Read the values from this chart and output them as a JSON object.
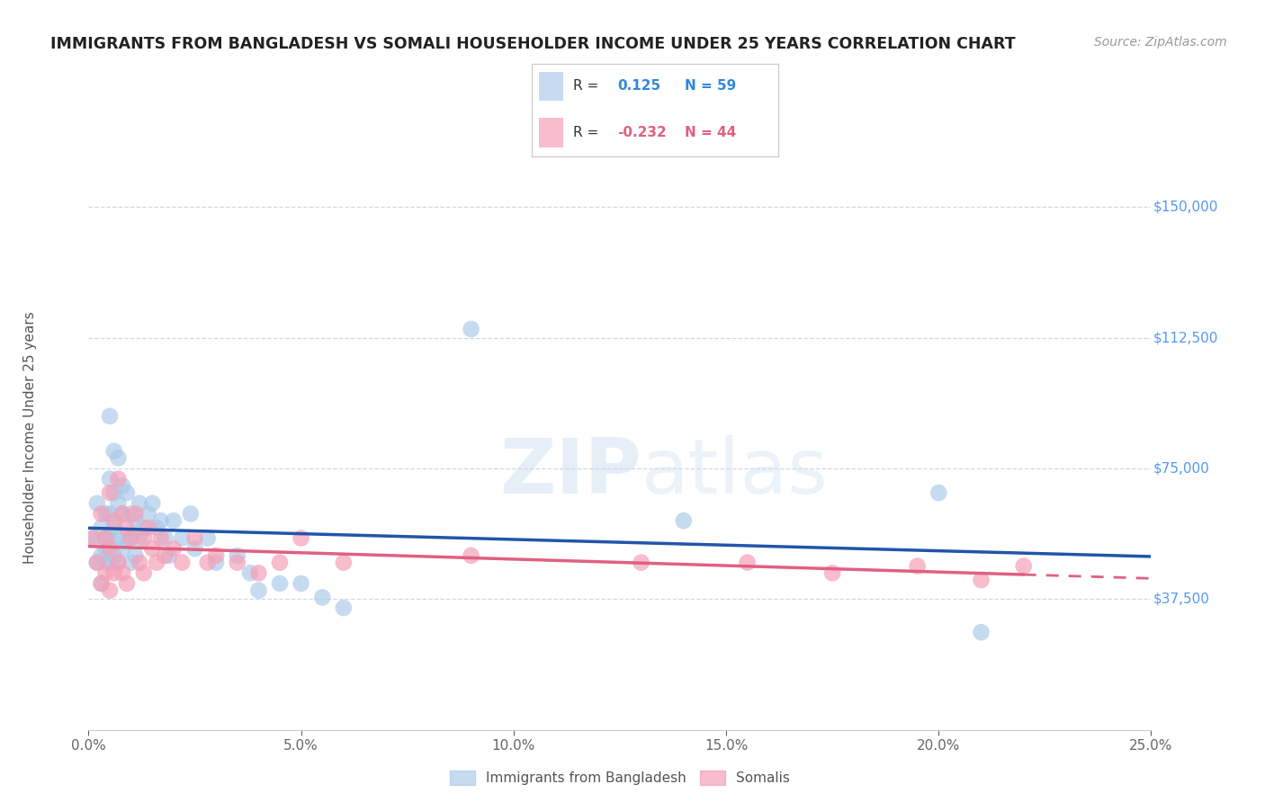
{
  "title": "IMMIGRANTS FROM BANGLADESH VS SOMALI HOUSEHOLDER INCOME UNDER 25 YEARS CORRELATION CHART",
  "source": "Source: ZipAtlas.com",
  "ylabel": "Householder Income Under 25 years",
  "xlabel_ticks": [
    "0.0%",
    "5.0%",
    "10.0%",
    "15.0%",
    "20.0%",
    "25.0%"
  ],
  "ytick_labels": [
    "$37,500",
    "$75,000",
    "$112,500",
    "$150,000"
  ],
  "ytick_values": [
    37500,
    75000,
    112500,
    150000
  ],
  "ylim": [
    0,
    168000
  ],
  "xlim": [
    0.0,
    0.25
  ],
  "bg_color": "#ffffff",
  "grid_color": "#d0d8e4",
  "blue_color": "#a8c8e8",
  "pink_color": "#f4a0b8",
  "line_blue": "#2255aa",
  "line_pink": "#e06080",
  "bangladesh_x": [
    0.001,
    0.002,
    0.002,
    0.003,
    0.003,
    0.003,
    0.004,
    0.004,
    0.004,
    0.004,
    0.005,
    0.005,
    0.005,
    0.005,
    0.005,
    0.006,
    0.006,
    0.006,
    0.006,
    0.007,
    0.007,
    0.007,
    0.007,
    0.008,
    0.008,
    0.008,
    0.009,
    0.009,
    0.01,
    0.01,
    0.01,
    0.011,
    0.011,
    0.012,
    0.012,
    0.013,
    0.014,
    0.015,
    0.016,
    0.017,
    0.018,
    0.019,
    0.02,
    0.022,
    0.024,
    0.025,
    0.028,
    0.03,
    0.035,
    0.038,
    0.04,
    0.045,
    0.05,
    0.055,
    0.06,
    0.09,
    0.14,
    0.2,
    0.21
  ],
  "bangladesh_y": [
    55000,
    48000,
    65000,
    50000,
    58000,
    42000,
    62000,
    52000,
    48000,
    55000,
    90000,
    72000,
    62000,
    55000,
    48000,
    80000,
    68000,
    58000,
    50000,
    78000,
    65000,
    55000,
    48000,
    70000,
    62000,
    52000,
    68000,
    55000,
    62000,
    55000,
    48000,
    60000,
    50000,
    65000,
    55000,
    58000,
    62000,
    65000,
    58000,
    60000,
    55000,
    50000,
    60000,
    55000,
    62000,
    52000,
    55000,
    48000,
    50000,
    45000,
    40000,
    42000,
    42000,
    38000,
    35000,
    115000,
    60000,
    68000,
    28000
  ],
  "somali_x": [
    0.001,
    0.002,
    0.003,
    0.003,
    0.004,
    0.004,
    0.005,
    0.005,
    0.005,
    0.006,
    0.006,
    0.007,
    0.007,
    0.008,
    0.008,
    0.009,
    0.009,
    0.01,
    0.011,
    0.012,
    0.013,
    0.013,
    0.014,
    0.015,
    0.016,
    0.017,
    0.018,
    0.02,
    0.022,
    0.025,
    0.028,
    0.03,
    0.035,
    0.04,
    0.045,
    0.05,
    0.06,
    0.09,
    0.13,
    0.155,
    0.175,
    0.195,
    0.21,
    0.22
  ],
  "somali_y": [
    55000,
    48000,
    62000,
    42000,
    55000,
    45000,
    68000,
    52000,
    40000,
    60000,
    45000,
    72000,
    48000,
    62000,
    45000,
    58000,
    42000,
    55000,
    62000,
    48000,
    55000,
    45000,
    58000,
    52000,
    48000,
    55000,
    50000,
    52000,
    48000,
    55000,
    48000,
    50000,
    48000,
    45000,
    48000,
    55000,
    48000,
    50000,
    48000,
    48000,
    45000,
    47000,
    43000,
    47000
  ]
}
